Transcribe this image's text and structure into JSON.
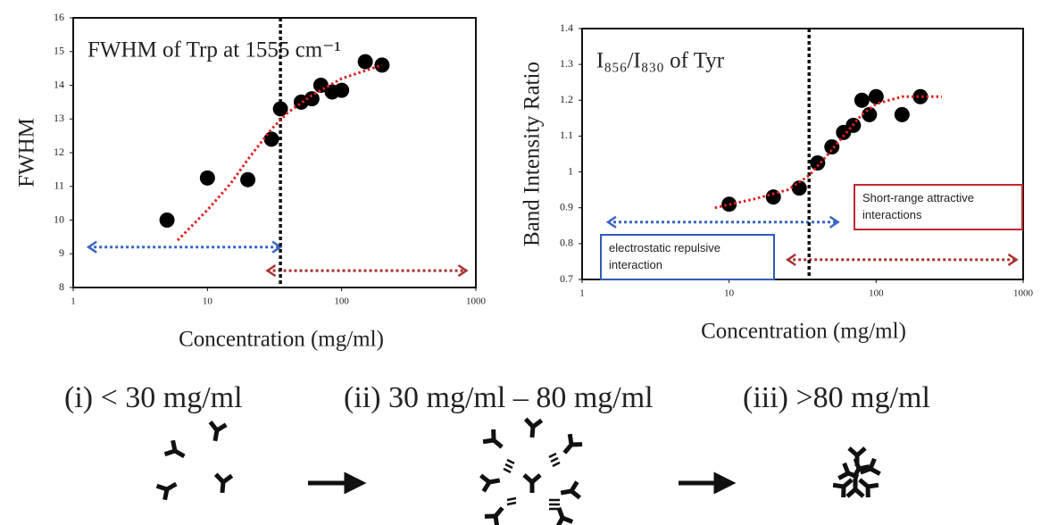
{
  "chart_data": [
    {
      "type": "scatter",
      "title": "FWHM of Trp at 1555 cm⁻¹",
      "x_label": "Concentration (mg/ml)",
      "y_label": "FWHM",
      "log_x": true,
      "xlim": [
        1,
        1000
      ],
      "xticks": [
        1,
        10,
        100,
        1000
      ],
      "ylim": [
        8,
        16
      ],
      "yticks": [
        8,
        9,
        10,
        11,
        12,
        13,
        14,
        15,
        16
      ],
      "x": [
        5,
        10,
        20,
        30,
        35,
        50,
        60,
        70,
        85,
        100,
        150,
        200
      ],
      "values": [
        10,
        11.25,
        11.2,
        12.4,
        13.3,
        13.5,
        13.6,
        14,
        13.8,
        13.85,
        14.7,
        14.6
      ],
      "color": "#000000",
      "fit": {
        "x": [
          6,
          10,
          15,
          20,
          30,
          40,
          60,
          100,
          200
        ],
        "values": [
          9.4,
          10.3,
          11.1,
          11.8,
          12.7,
          13.2,
          13.7,
          14.2,
          14.6
        ],
        "color": "#e02020"
      },
      "threshold_x": 35,
      "ranges": [
        {
          "x": [
            1.3,
            35
          ],
          "y": 9.2,
          "color": "#3a66c4"
        },
        {
          "x": [
            28,
            850
          ],
          "y": 8.5,
          "color": "#a83232"
        }
      ]
    },
    {
      "type": "scatter",
      "title": "I₈₅₆/I₈₃₀ of Tyr",
      "x_label": "Concentration (mg/ml)",
      "y_label": "Band Intensity Ratio",
      "log_x": true,
      "xlim": [
        1,
        1000
      ],
      "xticks": [
        1,
        10,
        100,
        1000
      ],
      "ylim": [
        0.7,
        1.4
      ],
      "yticks": [
        0.7,
        0.8,
        0.9,
        1,
        1.1,
        1.2,
        1.3,
        1.4
      ],
      "x": [
        10,
        20,
        30,
        40,
        50,
        60,
        70,
        80,
        90,
        100,
        150,
        200
      ],
      "values": [
        0.91,
        0.93,
        0.955,
        1.025,
        1.07,
        1.11,
        1.13,
        1.2,
        1.16,
        1.21,
        1.16,
        1.21
      ],
      "color": "#000000",
      "fit": {
        "x": [
          8,
          15,
          25,
          35,
          45,
          60,
          80,
          100,
          150,
          280
        ],
        "values": [
          0.9,
          0.925,
          0.95,
          0.99,
          1.04,
          1.1,
          1.16,
          1.19,
          1.21,
          1.21
        ],
        "color": "#e02020"
      },
      "threshold_x": 35,
      "ranges": [
        {
          "x": [
            1.5,
            55
          ],
          "y": 0.86,
          "color": "#3a66c4"
        },
        {
          "x": [
            25,
            900
          ],
          "y": 0.755,
          "color": "#a83232"
        }
      ],
      "annotations": [
        {
          "text": "Short-range attractive interactions",
          "color": "#c0282e"
        },
        {
          "text": "electrostatic repulsive interaction",
          "color": "#2f5bb7"
        }
      ]
    }
  ],
  "stages": [
    "(i) < 30 mg/ml",
    "(ii) 30 mg/ml – 80 mg/ml",
    "(iii) >80 mg/ml"
  ]
}
